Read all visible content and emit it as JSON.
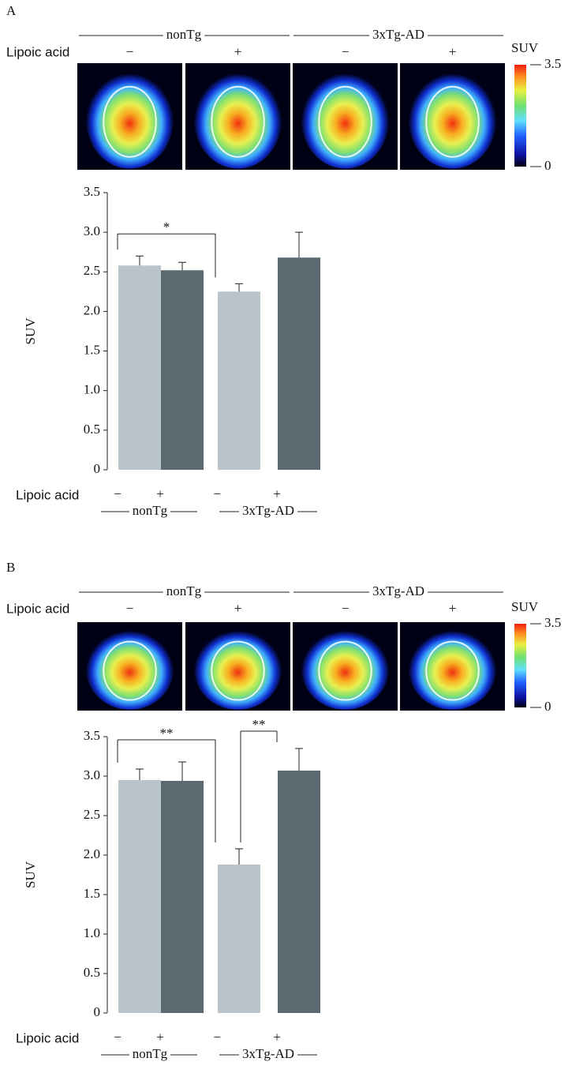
{
  "chart_data": [
    {
      "type": "bar",
      "panel": "A",
      "ylabel": "SUV",
      "row_label": "Lipoic acid",
      "categories": [
        "−",
        "+",
        "−",
        "+"
      ],
      "groups": [
        "nonTg",
        "3xTg-AD"
      ],
      "values": [
        2.58,
        2.52,
        2.25,
        2.68
      ],
      "errors": [
        0.12,
        0.1,
        0.1,
        0.32
      ],
      "colors": [
        "#b9c4ca",
        "#5a6a70",
        "#b9c4ca",
        "#5a6a70"
      ],
      "ylim": [
        0,
        3.5
      ],
      "yticks": [
        0,
        0.5,
        {
          "value": 1,
          "label": "1.0"
        },
        1.5,
        {
          "value": 2,
          "label": "2.0"
        },
        2.5,
        {
          "value": 3,
          "label": "3.0"
        },
        3.5
      ],
      "significance": [
        {
          "from": 0,
          "to": 2,
          "label": "*"
        }
      ],
      "colorbar": {
        "title": "SUV",
        "lim": [
          0,
          3.5
        ],
        "ticks": [
          0,
          3.5
        ]
      }
    },
    {
      "type": "bar",
      "panel": "B",
      "ylabel": "SUV",
      "row_label": "Lipoic acid",
      "categories": [
        "−",
        "+",
        "−",
        "+"
      ],
      "groups": [
        "nonTg",
        "3xTg-AD"
      ],
      "values": [
        2.95,
        2.94,
        1.88,
        3.07
      ],
      "errors": [
        0.14,
        0.24,
        0.2,
        0.28
      ],
      "colors": [
        "#b9c4ca",
        "#5a6a70",
        "#b9c4ca",
        "#5a6a70"
      ],
      "ylim": [
        0,
        3.5
      ],
      "yticks": [
        0,
        0.5,
        {
          "value": 1,
          "label": "1.0"
        },
        1.5,
        {
          "value": 2,
          "label": "2.0"
        },
        2.5,
        {
          "value": 3,
          "label": "3.0"
        },
        3.5
      ],
      "significance": [
        {
          "from": 0,
          "to": 2,
          "label": "**"
        },
        {
          "from": 2,
          "to": 3,
          "label": "**"
        }
      ],
      "colorbar": {
        "title": "SUV",
        "lim": [
          0,
          3.5
        ],
        "ticks": [
          0,
          3.5
        ]
      }
    }
  ]
}
